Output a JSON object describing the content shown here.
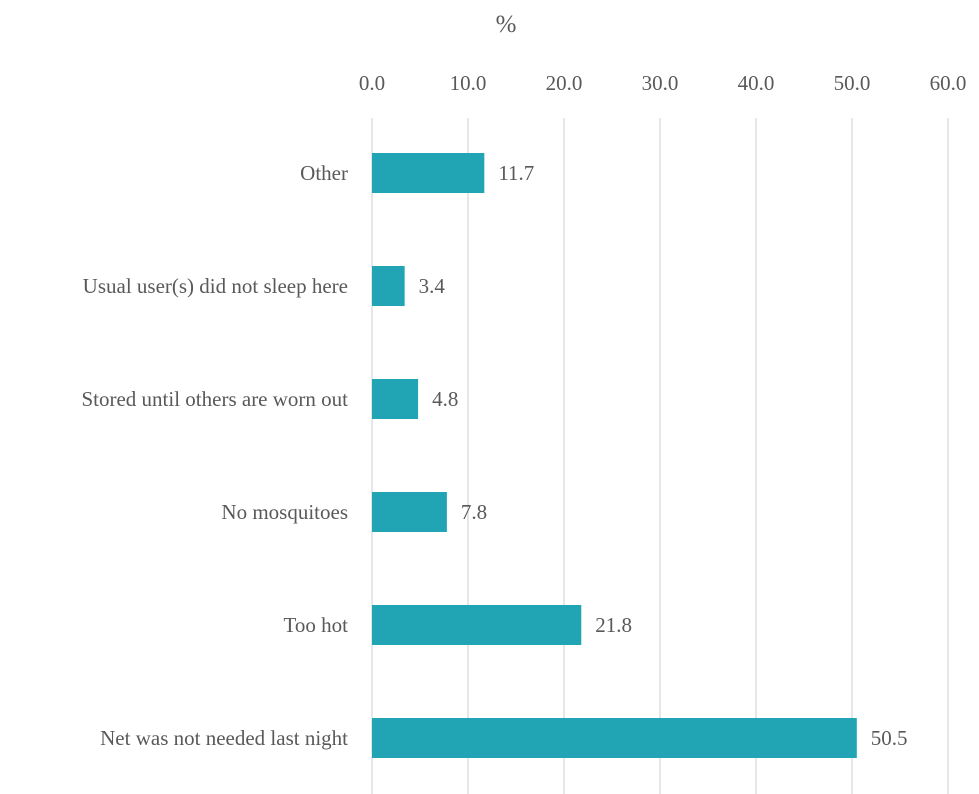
{
  "chart_data": {
    "type": "bar",
    "orientation": "horizontal",
    "title": "",
    "xlabel": "%",
    "ylabel": "",
    "xlim": [
      0,
      60
    ],
    "x_ticks": [
      "0.0",
      "10.0",
      "20.0",
      "30.0",
      "40.0",
      "50.0",
      "60.0"
    ],
    "axis_position": "top",
    "grid": true,
    "legend": "none",
    "bar_color": "#21a4b3",
    "categories": [
      "Other",
      "Usual user(s) did not sleep here",
      "Stored until others are worn out",
      "No mosquitoes",
      "Too hot",
      "Net was not needed last night"
    ],
    "values": [
      11.7,
      3.4,
      4.8,
      7.8,
      21.8,
      50.5
    ],
    "value_labels": [
      "11.7",
      "3.4",
      "4.8",
      "7.8",
      "21.8",
      "50.5"
    ]
  }
}
